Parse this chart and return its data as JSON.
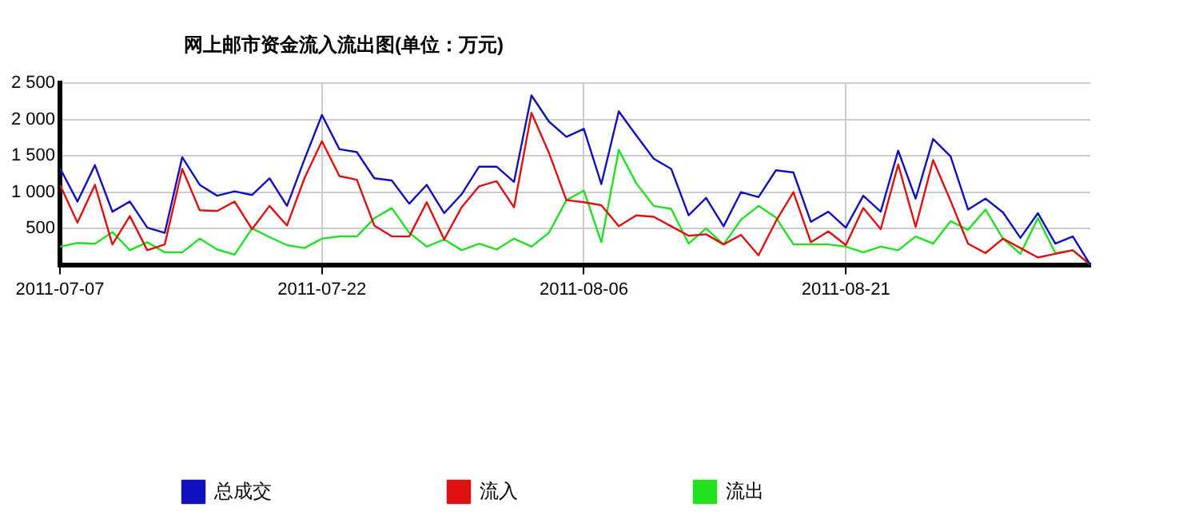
{
  "chart_data": {
    "type": "line",
    "title": "网上邮市资金流入流出图(单位：万元)",
    "x": [
      "2011-07-07",
      "2011-07-08",
      "2011-07-09",
      "2011-07-10",
      "2011-07-11",
      "2011-07-12",
      "2011-07-13",
      "2011-07-14",
      "2011-07-15",
      "2011-07-16",
      "2011-07-17",
      "2011-07-18",
      "2011-07-19",
      "2011-07-20",
      "2011-07-21",
      "2011-07-22",
      "2011-07-23",
      "2011-07-24",
      "2011-07-25",
      "2011-07-26",
      "2011-07-27",
      "2011-07-28",
      "2011-07-29",
      "2011-07-30",
      "2011-07-31",
      "2011-08-01",
      "2011-08-02",
      "2011-08-03",
      "2011-08-04",
      "2011-08-05",
      "2011-08-06",
      "2011-08-07",
      "2011-08-08",
      "2011-08-09",
      "2011-08-10",
      "2011-08-11",
      "2011-08-12",
      "2011-08-13",
      "2011-08-14",
      "2011-08-15",
      "2011-08-16",
      "2011-08-17",
      "2011-08-18",
      "2011-08-19",
      "2011-08-20",
      "2011-08-21",
      "2011-08-22",
      "2011-08-23",
      "2011-08-24",
      "2011-08-25",
      "2011-08-26",
      "2011-08-27",
      "2011-08-28",
      "2011-08-29",
      "2011-08-30",
      "2011-08-31",
      "2011-09-01",
      "2011-09-02",
      "2011-09-03",
      "2011-09-04"
    ],
    "series": [
      {
        "name": "总成交",
        "color": "#1010c0",
        "values": [
          1330,
          870,
          1370,
          730,
          870,
          510,
          440,
          1480,
          1100,
          950,
          1010,
          960,
          1190,
          810,
          1450,
          2060,
          1590,
          1550,
          1190,
          1160,
          840,
          1100,
          710,
          970,
          1350,
          1350,
          1140,
          2330,
          1970,
          1760,
          1870,
          1110,
          2110,
          1780,
          1460,
          1320,
          680,
          920,
          530,
          1000,
          930,
          1300,
          1270,
          590,
          730,
          510,
          950,
          730,
          1570,
          910,
          1730,
          1490,
          760,
          910,
          720,
          370,
          710,
          290,
          390,
          0
        ]
      },
      {
        "name": "流入",
        "color": "#e01010",
        "values": [
          1100,
          580,
          1100,
          280,
          670,
          200,
          280,
          1320,
          750,
          740,
          870,
          490,
          810,
          540,
          1190,
          1700,
          1220,
          1170,
          540,
          390,
          390,
          860,
          350,
          790,
          1080,
          1150,
          790,
          2090,
          1540,
          890,
          860,
          820,
          530,
          680,
          660,
          530,
          400,
          420,
          280,
          410,
          130,
          600,
          1000,
          310,
          460,
          270,
          780,
          490,
          1380,
          520,
          1440,
          880,
          290,
          160,
          360,
          230,
          100,
          150,
          200,
          0
        ]
      },
      {
        "name": "流出",
        "color": "#20e020",
        "values": [
          250,
          300,
          290,
          450,
          200,
          310,
          170,
          170,
          360,
          210,
          140,
          500,
          380,
          270,
          230,
          360,
          390,
          390,
          640,
          780,
          440,
          250,
          350,
          200,
          290,
          210,
          360,
          250,
          440,
          890,
          1020,
          310,
          1580,
          1120,
          810,
          770,
          290,
          500,
          280,
          620,
          810,
          650,
          280,
          280,
          280,
          250,
          170,
          250,
          200,
          390,
          290,
          600,
          480,
          760,
          360,
          150,
          640,
          160,
          200,
          0
        ]
      }
    ],
    "xlim": [
      "2011-07-07",
      "2011-09-04"
    ],
    "xticks": [
      "2011-07-07",
      "2011-07-22",
      "2011-08-06",
      "2011-08-21"
    ],
    "ylim": [
      0,
      2500
    ],
    "yticks": [
      {
        "value": 500,
        "label": "500"
      },
      {
        "value": 1000,
        "label": "1 000"
      },
      {
        "value": 1500,
        "label": "1 500"
      },
      {
        "value": 2000,
        "label": "2 000"
      },
      {
        "value": 2500,
        "label": "2 500"
      }
    ],
    "grid": true,
    "legend": "bottom",
    "marker": "none",
    "line_style": "solid"
  }
}
